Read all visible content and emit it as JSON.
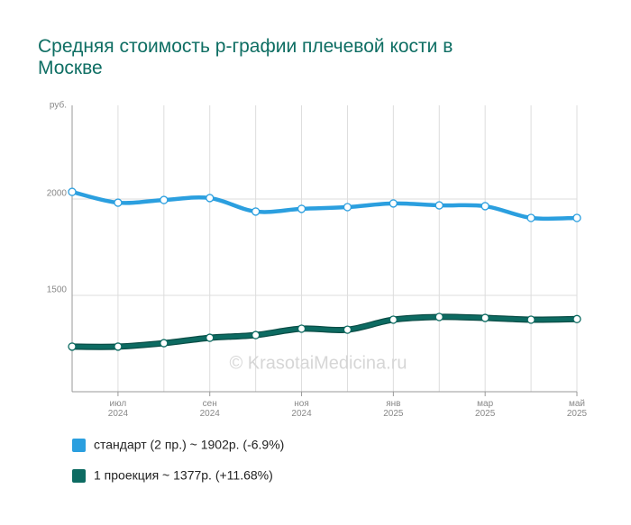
{
  "chart_data": {
    "type": "line",
    "title": "Средняя стоимость р-графии плечевой кости в Москве",
    "y_unit": "руб.",
    "watermark": "© KrasotaiMedicina.ru",
    "categories": [
      null,
      "июл 2024",
      null,
      "сен 2024",
      null,
      "ноя 2024",
      null,
      "янв 2025",
      null,
      "мар 2025",
      null,
      "май 2025"
    ],
    "series": [
      {
        "name": "стандарт (2 пр.) ~ 1902р. (-6.9%)",
        "color": "#2b9fdf",
        "values": [
          2037,
          1981,
          1995,
          2005,
          1935,
          1949,
          1958,
          1977,
          1967,
          1963,
          1902,
          1902
        ]
      },
      {
        "name": "1 проекция ~ 1377р. (+11.68%)",
        "color": "#0d6b62",
        "values": [
          1234,
          1234,
          1252,
          1280,
          1294,
          1327,
          1322,
          1374,
          1388,
          1383,
          1374,
          1377
        ]
      }
    ],
    "ylim": [
      1000,
      2486
    ],
    "yticks": [
      1500,
      2000
    ],
    "grid": true
  }
}
